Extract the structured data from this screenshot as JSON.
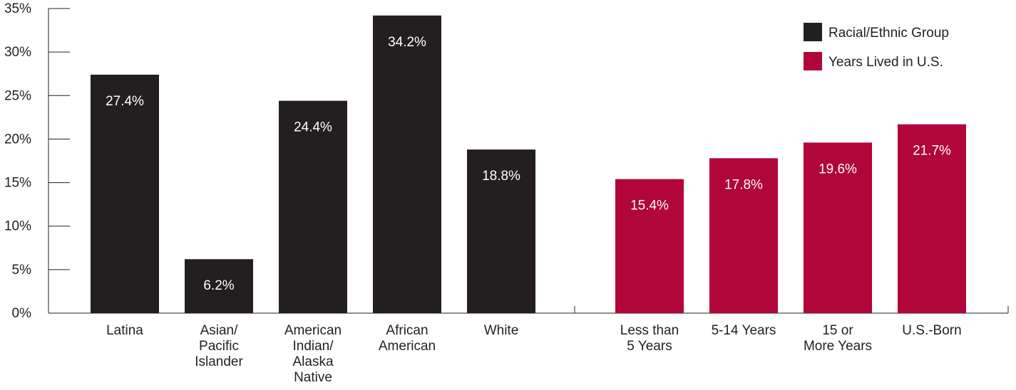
{
  "chart_data": {
    "type": "bar",
    "yticks": [
      "0%",
      "5%",
      "10%",
      "15%",
      "20%",
      "25%",
      "30%",
      "35%"
    ],
    "ylim": [
      0,
      35
    ],
    "grid": false,
    "legend_placement": "top-right",
    "series": [
      {
        "name": "Racial/Ethnic Group",
        "color": "#231f20",
        "categories": [
          [
            "Latina"
          ],
          [
            "Asian/",
            "Pacific",
            "Islander"
          ],
          [
            "American",
            "Indian/",
            "Alaska",
            "Native"
          ],
          [
            "African",
            "American"
          ],
          [
            "White"
          ]
        ],
        "values": [
          27.4,
          6.2,
          24.4,
          34.2,
          18.8
        ],
        "labels": [
          "27.4%",
          "6.2%",
          "24.4%",
          "34.2%",
          "18.8%"
        ]
      },
      {
        "name": "Years Lived in U.S.",
        "color": "#b0063a",
        "categories": [
          [
            "Less than",
            "5 Years"
          ],
          [
            "5-14 Years"
          ],
          [
            "15 or",
            "More Years"
          ],
          [
            "U.S.-Born"
          ]
        ],
        "values": [
          15.4,
          17.8,
          19.6,
          21.7
        ],
        "labels": [
          "15.4%",
          "17.8%",
          "19.6%",
          "21.7%"
        ]
      }
    ]
  }
}
